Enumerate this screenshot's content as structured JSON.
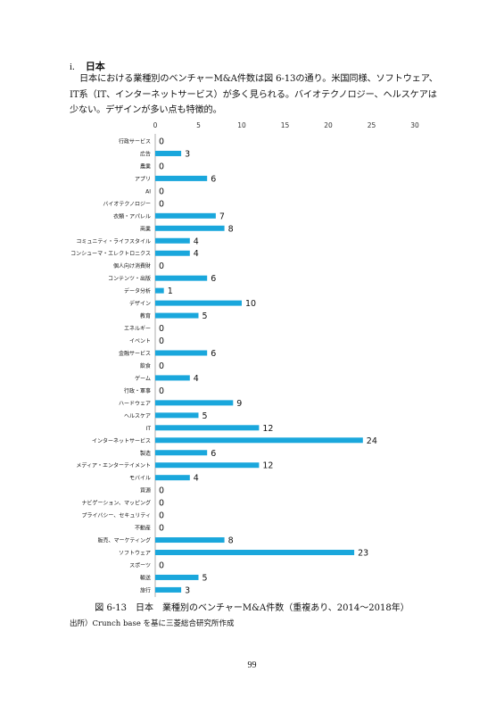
{
  "section": {
    "number": "i.",
    "title": "日本"
  },
  "paragraph": "日本における業種別のベンチャーM&A件数は図 6-13の通り。米国同様、ソフトウェア、IT系（IT、インターネットサービス）が多く見られる。バイオテクノロジー、ヘルスケアは少ない。デザインが多い点も特徴的。",
  "chart_data": {
    "type": "bar",
    "orientation": "horizontal",
    "categories": [
      "行政サービス",
      "広告",
      "農業",
      "アプリ",
      "AI",
      "バイオテクノロジー",
      "衣類・アパレル",
      "商業",
      "コミュニティ・ライフスタイル",
      "コンシューマ・エレクトロニクス",
      "個人向け消費財",
      "コンテンツ・出版",
      "データ分析",
      "デザイン",
      "教育",
      "エネルギー",
      "イベント",
      "金融サービス",
      "飲食",
      "ゲーム",
      "行政・軍事",
      "ハードウェア",
      "ヘルスケア",
      "IT",
      "インターネットサービス",
      "製造",
      "メディア・エンターテイメント",
      "モバイル",
      "資源",
      "ナビゲーション、マッピング",
      "プライバシー、セキュリティ",
      "不動産",
      "販売、マーケティング",
      "ソフトウェア",
      "スポーツ",
      "輸送",
      "旅行"
    ],
    "values": [
      0,
      3,
      0,
      6,
      0,
      0,
      7,
      8,
      4,
      4,
      0,
      6,
      1,
      10,
      5,
      0,
      0,
      6,
      0,
      4,
      0,
      9,
      5,
      12,
      24,
      6,
      12,
      4,
      0,
      0,
      0,
      0,
      8,
      23,
      0,
      5,
      3
    ],
    "xticks": [
      0,
      5,
      10,
      15,
      20,
      25,
      30
    ],
    "xlim": [
      0,
      30
    ],
    "bar_color": "#1aa7dc",
    "xaxis_position": "top",
    "grid": false
  },
  "caption": "図 6-13　日本　業種別のベンチャーM&A件数（重複あり、2014～2018年）",
  "source": "出所）Crunch base を基に三菱総合研究所作成",
  "page_number": "99"
}
